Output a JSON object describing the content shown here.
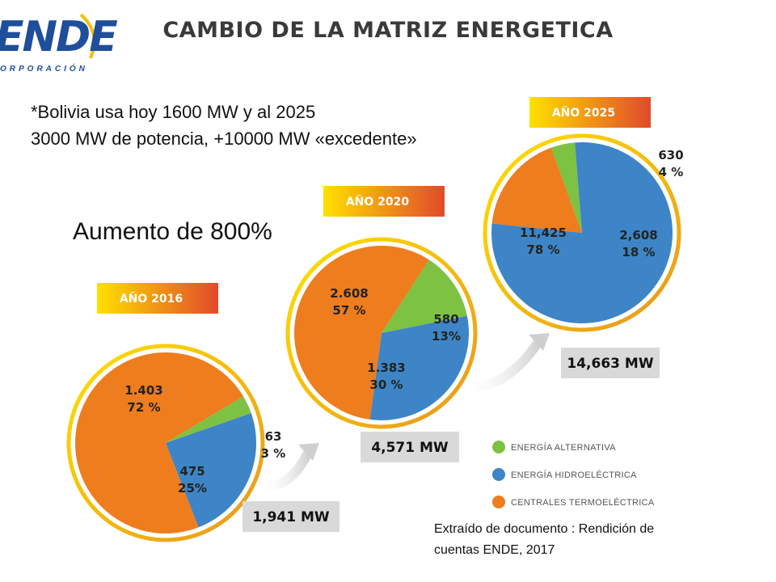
{
  "header": {
    "logo_text": "ENDE",
    "logo_subtitle": "ORPORACIÓN",
    "title": "CAMBIO DE LA MATRIZ  ENERGETICA"
  },
  "note": {
    "line1": "*Bolivia usa hoy  1600 MW y al 2025",
    "line2": "3000 MW de potencia, +10000 MW «excedente»"
  },
  "increase": "Aumento de 800%",
  "source": "Extraído de documento : Rendición de cuentas ENDE, 2017",
  "colors": {
    "alternativa": "#7dc242",
    "hidro": "#3d85c6",
    "termo": "#ee7d1e",
    "year_badge_start": "#ffe000",
    "year_badge_end": "#e14a2a",
    "total_badge": "#d9d9d9"
  },
  "chart_data": {
    "type": "pie",
    "legend": [
      {
        "key": "alternativa",
        "label": "ENERGÍA ALTERNATIVA"
      },
      {
        "key": "hidro",
        "label": "ENERGÍA HIDROELÉCTRICA"
      },
      {
        "key": "termo",
        "label": "CENTRALES TERMOELÉCTRICA"
      }
    ],
    "legend_position": "bottom-right",
    "pies": [
      {
        "year": "AÑO 2016",
        "total": "1,941 MW",
        "slices": [
          {
            "key": "alternativa",
            "value": 63,
            "label": "63",
            "pct_label": "3 %"
          },
          {
            "key": "hidro",
            "value": 475,
            "label": "475",
            "pct_label": "25%"
          },
          {
            "key": "termo",
            "value": 1403,
            "label": "1.403",
            "pct_label": "72 %"
          }
        ]
      },
      {
        "year": "AÑO 2020",
        "total": "4,571 MW",
        "slices": [
          {
            "key": "alternativa",
            "value": 580,
            "label": "580",
            "pct_label": "13%"
          },
          {
            "key": "hidro",
            "value": 1383,
            "label": "1.383",
            "pct_label": "30 %"
          },
          {
            "key": "termo",
            "value": 2608,
            "label": "2.608",
            "pct_label": "57 %"
          }
        ]
      },
      {
        "year": "AÑO 2025",
        "total": "14,663 MW",
        "slices": [
          {
            "key": "alternativa",
            "value": 630,
            "label": "630",
            "pct_label": "4 %"
          },
          {
            "key": "hidro",
            "value": 11425,
            "label": "11,425",
            "pct_label": "78 %"
          },
          {
            "key": "termo",
            "value": 2608,
            "label": "2,608",
            "pct_label": "18 %"
          }
        ]
      }
    ]
  }
}
